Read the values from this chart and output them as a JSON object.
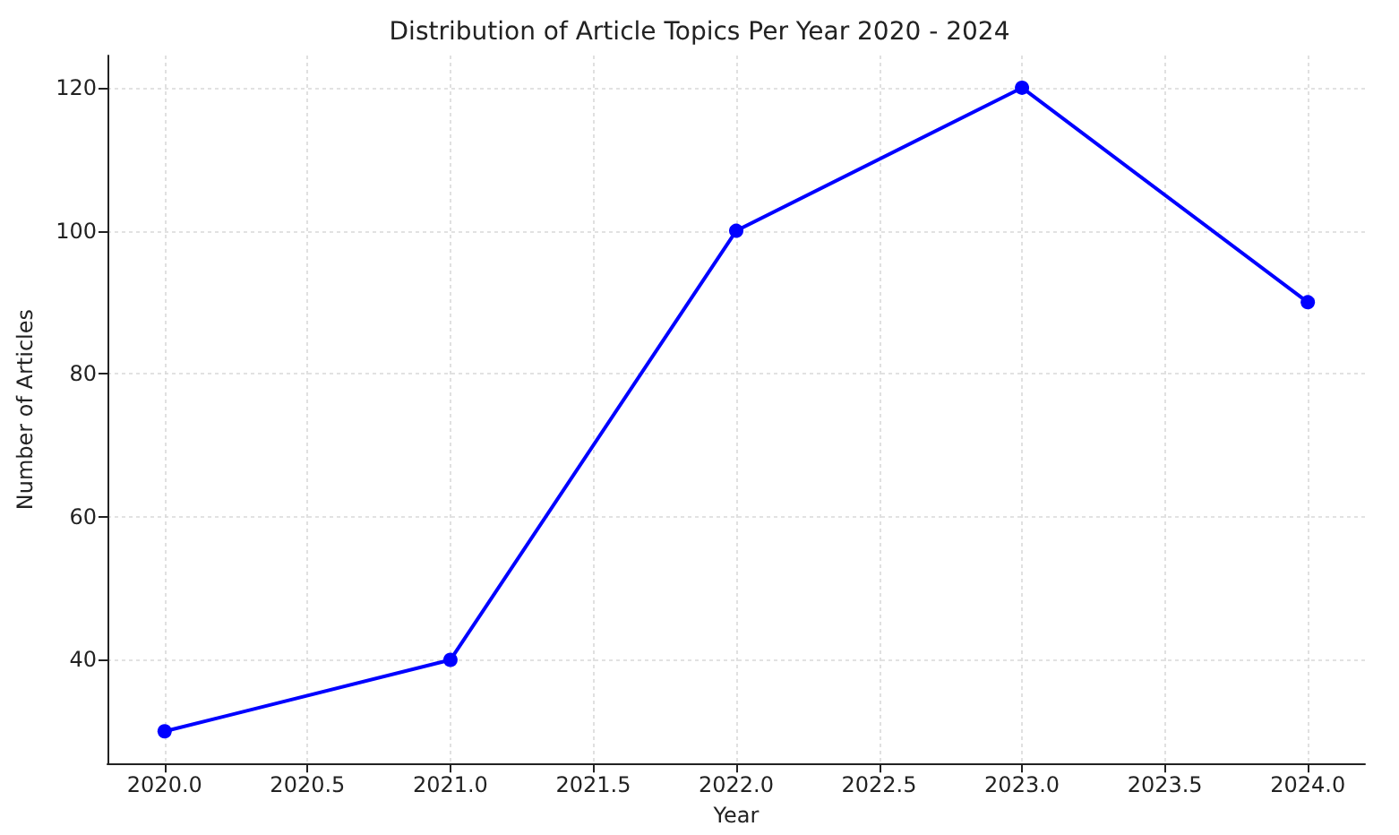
{
  "chart_data": {
    "type": "line",
    "title": "Distribution of Article Topics Per Year 2020 - 2024",
    "xlabel": "Year",
    "ylabel": "Number of Articles",
    "x": [
      2020,
      2021,
      2022,
      2023,
      2024
    ],
    "series": [
      {
        "color": "#0000ff",
        "values": [
          30,
          40,
          100,
          120,
          90
        ]
      }
    ],
    "xlim": [
      2019.8,
      2024.2
    ],
    "xticks": [
      {
        "value": 2020,
        "label": "2020.0"
      },
      {
        "value": 2020.5,
        "label": "2020.5"
      },
      {
        "value": 2021,
        "label": "2021.0"
      },
      {
        "value": 2021.5,
        "label": "2021.5"
      },
      {
        "value": 2022,
        "label": "2022.0"
      },
      {
        "value": 2022.5,
        "label": "2022.5"
      },
      {
        "value": 2023,
        "label": "2023.0"
      },
      {
        "value": 2023.5,
        "label": "2023.5"
      },
      {
        "value": 2024,
        "label": "2024.0"
      }
    ],
    "ylim": [
      25.5,
      124.5
    ],
    "yticks": [
      40,
      60,
      80,
      100,
      120
    ],
    "grid": true,
    "marker": "circle",
    "line_style": "solid"
  }
}
